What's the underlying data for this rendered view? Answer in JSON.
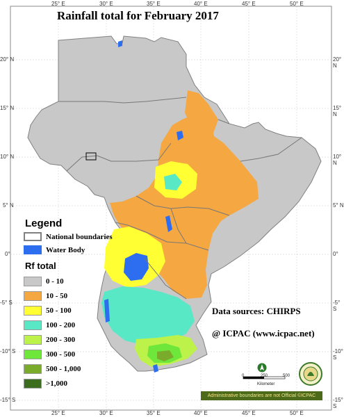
{
  "title": "Rainfall total  for  February 2017",
  "longitude_ticks": [
    "25° E",
    "30° E",
    "35° E",
    "40° E",
    "45° E",
    "50° E"
  ],
  "latitude_ticks": [
    "20° N",
    "15° N",
    "10° N",
    "5° N",
    "0°",
    "-5° S",
    "-10° S",
    "-15° S"
  ],
  "legend": {
    "heading": "Legend",
    "items": [
      {
        "label": "National boundaries",
        "color": "#ffffff",
        "border": "#808080"
      },
      {
        "label": "Water Body",
        "color": "#2d6ef0",
        "border": "#2d6ef0"
      }
    ],
    "rf_heading": "Rf total",
    "classes": [
      {
        "label": "0 - 10",
        "color": "#c8c8c8"
      },
      {
        "label": "10 - 50",
        "color": "#f5a742"
      },
      {
        "label": "50 - 100",
        "color": "#ffff33"
      },
      {
        "label": "100 - 200",
        "color": "#58e8c6"
      },
      {
        "label": "200 - 300",
        "color": "#bdf24a"
      },
      {
        "label": "300 - 500",
        "color": "#6ee63a"
      },
      {
        "label": "500 - 1,000",
        "color": "#7aab2a"
      },
      {
        "label": ">1,000",
        "color": "#3a6e1e"
      }
    ]
  },
  "data_source": "Data sources: CHIRPS",
  "credit": "@ ICPAC (www.icpac.net)",
  "scale_bar": {
    "labels": [
      "0",
      "250",
      "500"
    ],
    "unit": "Kilometer"
  },
  "admin_note": "Administrative boundaries are not Official  ©ICPAC"
}
